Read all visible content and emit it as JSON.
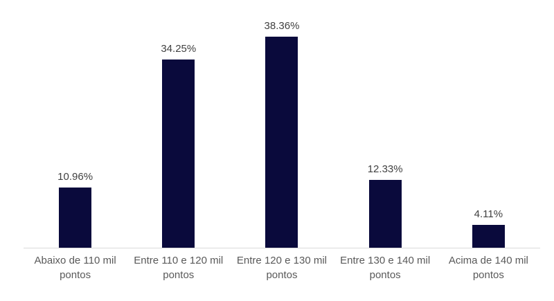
{
  "chart_data": {
    "type": "bar",
    "title": "",
    "xlabel": "",
    "ylabel": "",
    "categories": [
      "Abaixo de 110 mil pontos",
      "Entre 110 e 120 mil pontos",
      "Entre 120 e 130 mil pontos",
      "Entre 130 e 140 mil pontos",
      "Acima de 140 mil pontos"
    ],
    "values": [
      10.96,
      34.25,
      38.36,
      12.33,
      4.11
    ],
    "value_labels": [
      "10.96%",
      "34.25%",
      "38.36%",
      "12.33%",
      "4.11%"
    ],
    "ylim": [
      0,
      45
    ],
    "grid": false,
    "legend": false,
    "colors": {
      "bar": "#0a0a3c",
      "axis_line": "#d9d9d9",
      "value_label": "#404040",
      "category_label": "#595959",
      "background": "#ffffff"
    }
  }
}
